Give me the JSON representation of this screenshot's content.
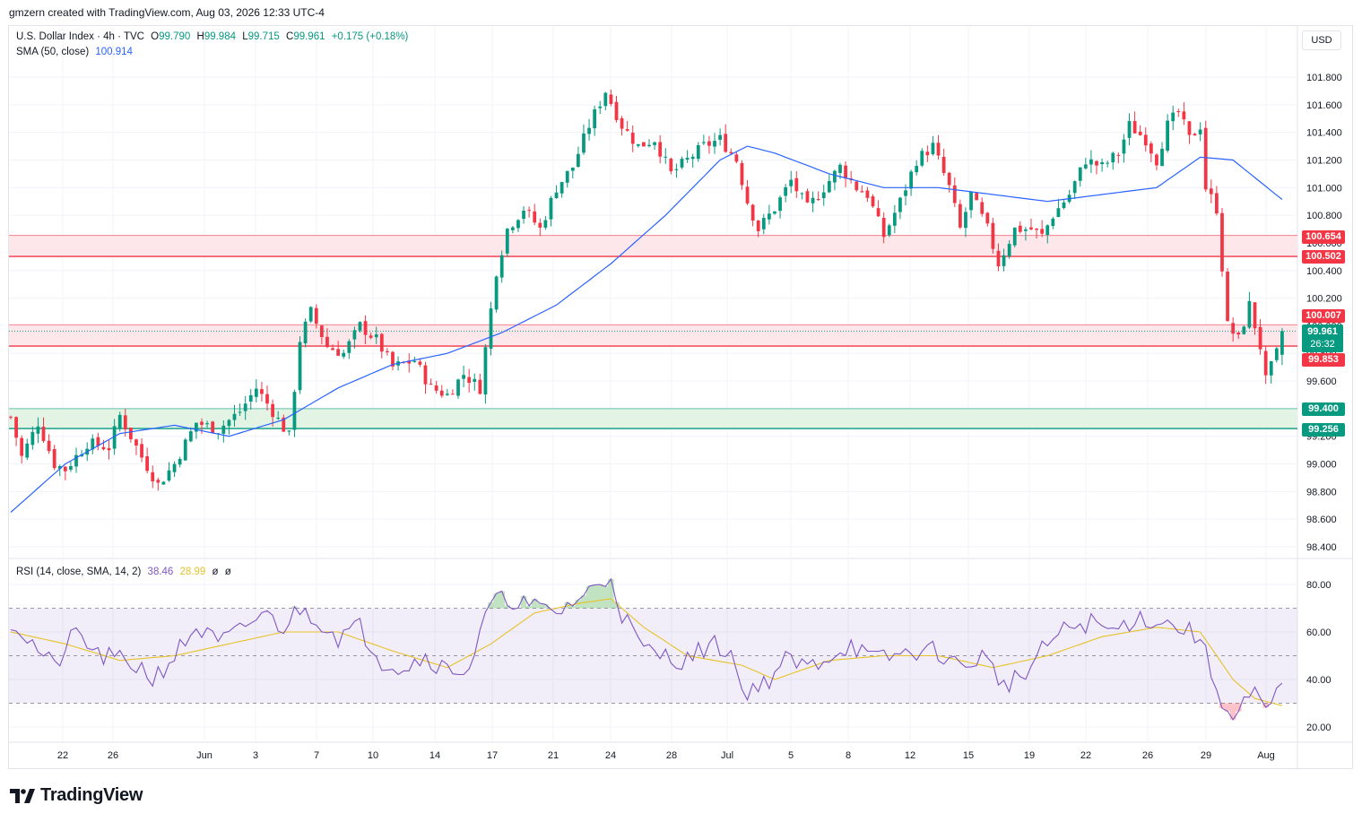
{
  "credit": "gmzern created with TradingView.com, Aug 03, 2026 12:33 UTC-4",
  "currency": "USD",
  "legend": {
    "symbol": "U.S. Dollar Index · 4h · TVC",
    "o_label": "O",
    "o_value": "99.790",
    "h_label": "H",
    "h_value": "99.984",
    "l_label": "L",
    "l_value": "99.715",
    "c_label": "C",
    "c_value": "99.961",
    "change": "+0.175 (+0.18%)",
    "sma_label": "SMA (50, close)",
    "sma_value": "100.914",
    "rsi_label": "RSI (14, close, SMA, 14, 2)",
    "rsi_value": "38.46",
    "rsi_ma_value": "28.99",
    "rsi_extra1": "ø",
    "rsi_extra2": "ø"
  },
  "price_tags": {
    "zone_upper_top": "100.654",
    "zone_upper_bottom": "100.502",
    "zone_mid_top": "100.007",
    "current_price": "99.961",
    "countdown": "26:32",
    "zone_mid_bottom": "99.853",
    "zone_lower_top": "99.400",
    "zone_lower_bottom": "99.256"
  },
  "footer": {
    "brand": "TradingView"
  },
  "colors": {
    "up": "#089981",
    "down": "#f23645",
    "sma": "#2962ff",
    "rsi": "#7e57c2",
    "rsi_ma": "#e6c229",
    "resistance_fill": "#fde7ea",
    "support_fill": "#e3f4e5"
  },
  "chart_data": [
    {
      "type": "candlestick",
      "title": "U.S. Dollar Index · 4h · TVC",
      "ylim": [
        98.3,
        102.15
      ],
      "y_ticks": [
        "101.800",
        "101.600",
        "101.400",
        "101.200",
        "101.000",
        "100.800",
        "100.600",
        "100.400",
        "100.200",
        "100.000",
        "99.800",
        "99.600",
        "99.400",
        "99.200",
        "99.000",
        "98.800",
        "98.600",
        "98.400"
      ],
      "x_ticks": [
        "22",
        "26",
        "Jun",
        "3",
        "7",
        "10",
        "14",
        "17",
        "21",
        "24",
        "28",
        "Jul",
        "5",
        "8",
        "12",
        "15",
        "19",
        "22",
        "26",
        "29",
        "Aug"
      ],
      "last": {
        "open": 99.79,
        "high": 99.984,
        "low": 99.715,
        "close": 99.961
      },
      "zones": [
        {
          "name": "resistance-upper",
          "top": 100.654,
          "bottom": 100.502
        },
        {
          "name": "resistance-mid",
          "top": 100.007,
          "bottom": 99.853
        },
        {
          "name": "support-lower",
          "top": 99.4,
          "bottom": 99.256
        }
      ],
      "anchor_closes": [
        [
          0,
          99.34
        ],
        [
          2,
          99.05
        ],
        [
          5,
          99.3
        ],
        [
          8,
          99.0
        ],
        [
          10,
          98.96
        ],
        [
          14,
          99.15
        ],
        [
          18,
          99.12
        ],
        [
          20,
          99.35
        ],
        [
          24,
          99.05
        ],
        [
          27,
          98.85
        ],
        [
          30,
          99.0
        ],
        [
          34,
          99.3
        ],
        [
          38,
          99.25
        ],
        [
          42,
          99.38
        ],
        [
          45,
          99.55
        ],
        [
          48,
          99.38
        ],
        [
          51,
          99.2
        ],
        [
          53,
          99.9
        ],
        [
          55,
          100.1
        ],
        [
          58,
          99.85
        ],
        [
          61,
          99.8
        ],
        [
          64,
          100.0
        ],
        [
          67,
          99.9
        ],
        [
          70,
          99.7
        ],
        [
          74,
          99.75
        ],
        [
          77,
          99.55
        ],
        [
          80,
          99.5
        ],
        [
          83,
          99.65
        ],
        [
          86,
          99.55
        ],
        [
          89,
          100.4
        ],
        [
          91,
          100.7
        ],
        [
          94,
          100.85
        ],
        [
          97,
          100.7
        ],
        [
          100,
          101.0
        ],
        [
          103,
          101.15
        ],
        [
          106,
          101.45
        ],
        [
          109,
          101.7
        ],
        [
          112,
          101.45
        ],
        [
          115,
          101.3
        ],
        [
          118,
          101.35
        ],
        [
          121,
          101.1
        ],
        [
          124,
          101.2
        ],
        [
          127,
          101.3
        ],
        [
          130,
          101.35
        ],
        [
          133,
          101.2
        ],
        [
          135,
          100.9
        ],
        [
          137,
          100.7
        ],
        [
          140,
          100.85
        ],
        [
          143,
          101.05
        ],
        [
          146,
          100.85
        ],
        [
          149,
          101.0
        ],
        [
          152,
          101.15
        ],
        [
          155,
          101.0
        ],
        [
          157,
          100.95
        ],
        [
          160,
          100.65
        ],
        [
          163,
          100.9
        ],
        [
          166,
          101.2
        ],
        [
          169,
          101.3
        ],
        [
          172,
          101.0
        ],
        [
          174,
          100.7
        ],
        [
          176,
          100.95
        ],
        [
          179,
          100.7
        ],
        [
          181,
          100.45
        ],
        [
          184,
          100.7
        ],
        [
          187,
          100.7
        ],
        [
          189,
          100.65
        ],
        [
          191,
          100.8
        ],
        [
          194,
          100.95
        ],
        [
          197,
          101.2
        ],
        [
          200,
          101.15
        ],
        [
          203,
          101.25
        ],
        [
          205,
          101.45
        ],
        [
          208,
          101.35
        ],
        [
          210,
          101.2
        ],
        [
          212,
          101.45
        ],
        [
          214,
          101.55
        ],
        [
          216,
          101.35
        ],
        [
          218,
          101.45
        ],
        [
          219,
          101.0
        ],
        [
          221,
          100.85
        ],
        [
          223,
          100.0
        ],
        [
          225,
          99.9
        ],
        [
          227,
          100.15
        ],
        [
          229,
          99.85
        ],
        [
          230,
          99.6
        ],
        [
          232,
          99.8
        ],
        [
          233,
          99.961
        ]
      ],
      "sma_anchor": [
        [
          0,
          98.65
        ],
        [
          10,
          99.0
        ],
        [
          20,
          99.22
        ],
        [
          30,
          99.28
        ],
        [
          40,
          99.2
        ],
        [
          50,
          99.32
        ],
        [
          60,
          99.55
        ],
        [
          70,
          99.72
        ],
        [
          80,
          99.8
        ],
        [
          90,
          99.95
        ],
        [
          100,
          100.15
        ],
        [
          110,
          100.45
        ],
        [
          120,
          100.8
        ],
        [
          130,
          101.2
        ],
        [
          135,
          101.3
        ],
        [
          140,
          101.25
        ],
        [
          150,
          101.1
        ],
        [
          160,
          101.0
        ],
        [
          170,
          101.0
        ],
        [
          180,
          100.95
        ],
        [
          190,
          100.9
        ],
        [
          200,
          100.95
        ],
        [
          210,
          101.0
        ],
        [
          218,
          101.22
        ],
        [
          224,
          101.2
        ],
        [
          233,
          100.914
        ]
      ]
    },
    {
      "type": "line",
      "title": "RSI (14, close, SMA, 14, 2)",
      "ylim": [
        15,
        85
      ],
      "y_ticks": [
        "80.00",
        "60.00",
        "40.00",
        "20.00"
      ],
      "bands": {
        "upper": 70,
        "middle": 50,
        "lower": 30
      },
      "series": [
        {
          "name": "RSI",
          "anchor": [
            [
              0,
              65
            ],
            [
              4,
              55
            ],
            [
              8,
              45
            ],
            [
              12,
              60
            ],
            [
              16,
              50
            ],
            [
              20,
              48
            ],
            [
              24,
              45
            ],
            [
              26,
              40
            ],
            [
              30,
              50
            ],
            [
              34,
              62
            ],
            [
              38,
              55
            ],
            [
              42,
              60
            ],
            [
              46,
              68
            ],
            [
              50,
              62
            ],
            [
              53,
              70
            ],
            [
              56,
              66
            ],
            [
              60,
              58
            ],
            [
              64,
              62
            ],
            [
              68,
              48
            ],
            [
              72,
              45
            ],
            [
              76,
              50
            ],
            [
              80,
              44
            ],
            [
              84,
              45
            ],
            [
              88,
              72
            ],
            [
              92,
              74
            ],
            [
              96,
              70
            ],
            [
              100,
              68
            ],
            [
              104,
              74
            ],
            [
              108,
              80
            ],
            [
              110,
              84
            ],
            [
              112,
              68
            ],
            [
              116,
              52
            ],
            [
              120,
              50
            ],
            [
              124,
              48
            ],
            [
              128,
              55
            ],
            [
              132,
              52
            ],
            [
              134,
              35
            ],
            [
              138,
              38
            ],
            [
              142,
              48
            ],
            [
              146,
              45
            ],
            [
              150,
              50
            ],
            [
              154,
              55
            ],
            [
              158,
              48
            ],
            [
              162,
              50
            ],
            [
              166,
              52
            ],
            [
              170,
              52
            ],
            [
              174,
              45
            ],
            [
              178,
              50
            ],
            [
              182,
              38
            ],
            [
              186,
              42
            ],
            [
              190,
              55
            ],
            [
              194,
              62
            ],
            [
              198,
              64
            ],
            [
              202,
              60
            ],
            [
              206,
              66
            ],
            [
              210,
              65
            ],
            [
              214,
              62
            ],
            [
              218,
              58
            ],
            [
              220,
              42
            ],
            [
              222,
              32
            ],
            [
              224,
              22
            ],
            [
              226,
              30
            ],
            [
              228,
              33
            ],
            [
              230,
              26
            ],
            [
              232,
              33
            ],
            [
              233,
              38.46
            ]
          ]
        },
        {
          "name": "RSI-based MA",
          "anchor": [
            [
              0,
              60
            ],
            [
              10,
              55
            ],
            [
              20,
              48
            ],
            [
              30,
              50
            ],
            [
              40,
              55
            ],
            [
              50,
              60
            ],
            [
              60,
              60
            ],
            [
              70,
              52
            ],
            [
              80,
              45
            ],
            [
              88,
              55
            ],
            [
              96,
              68
            ],
            [
              104,
              72
            ],
            [
              110,
              74
            ],
            [
              116,
              62
            ],
            [
              124,
              50
            ],
            [
              134,
              46
            ],
            [
              140,
              40
            ],
            [
              150,
              48
            ],
            [
              160,
              50
            ],
            [
              170,
              50
            ],
            [
              180,
              45
            ],
            [
              190,
              50
            ],
            [
              200,
              58
            ],
            [
              210,
              62
            ],
            [
              218,
              60
            ],
            [
              224,
              40
            ],
            [
              228,
              32
            ],
            [
              233,
              28.99
            ]
          ]
        }
      ]
    }
  ]
}
